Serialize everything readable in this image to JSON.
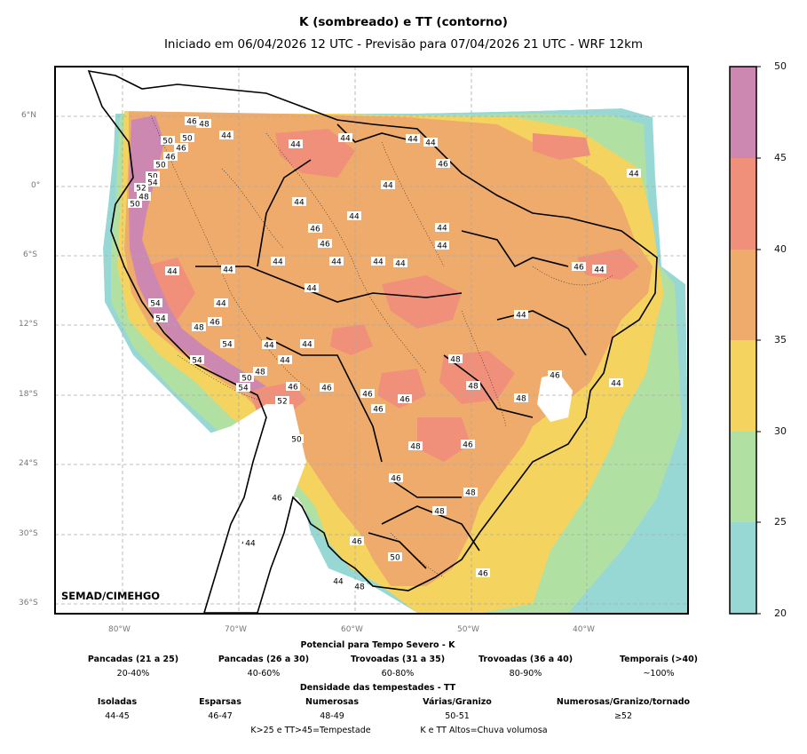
{
  "title": "K (sombreado) e TT (contorno)",
  "subtitle": "Iniciado em 06/04/2026 12 UTC - Previsão para 07/04/2026 21 UTC - WRF 12km",
  "credit": "SEMAD/CIMEHGO",
  "axes": {
    "lat_labels": [
      "6°N",
      "0°",
      "6°S",
      "12°S",
      "18°S",
      "24°S",
      "30°S",
      "36°S"
    ],
    "lon_labels": [
      "80°W",
      "70°W",
      "60°W",
      "50°W",
      "40°W"
    ]
  },
  "colorbar": {
    "ticks": [
      "50",
      "45",
      "40",
      "35",
      "30",
      "25",
      "20"
    ],
    "bands": [
      {
        "from": 45,
        "to": 50,
        "color": "#cc88b0"
      },
      {
        "from": 40,
        "to": 45,
        "color": "#f0907a"
      },
      {
        "from": 35,
        "to": 40,
        "color": "#efab6c"
      },
      {
        "from": 30,
        "to": 35,
        "color": "#f5d35f"
      },
      {
        "from": 25,
        "to": 30,
        "color": "#b1e0a3"
      },
      {
        "from": 20,
        "to": 25,
        "color": "#98d8d4"
      }
    ]
  },
  "tt_contour_labels": [
    "46",
    "48",
    "50",
    "50",
    "46",
    "46",
    "50",
    "50",
    "52",
    "48",
    "50",
    "54",
    "44",
    "54",
    "54",
    "48",
    "46",
    "54",
    "54",
    "50",
    "54",
    "48",
    "52",
    "46",
    "50",
    "46",
    "44",
    "44",
    "44",
    "48",
    "44",
    "44",
    "44",
    "44",
    "46",
    "44",
    "46",
    "46",
    "44",
    "44",
    "44",
    "44",
    "44",
    "44",
    "44",
    "44",
    "44",
    "44",
    "44",
    "44",
    "44",
    "44",
    "46",
    "46",
    "46",
    "46",
    "48",
    "48",
    "48",
    "48",
    "46",
    "48",
    "48",
    "46",
    "46",
    "44",
    "44",
    "46",
    "44",
    "50",
    "46",
    "48",
    "44",
    "46",
    "44"
  ],
  "legend": {
    "k_title": "Potencial para Tempo Severo - K",
    "k_categories": [
      {
        "label": "Pancadas (21 a 25)",
        "value": "20-40%"
      },
      {
        "label": "Pancadas (26 a 30)",
        "value": "40-60%"
      },
      {
        "label": "Trovoadas (31 a 35)",
        "value": "60-80%"
      },
      {
        "label": "Trovoadas (36 a 40)",
        "value": "80-90%"
      },
      {
        "label": "Temporais (>40)",
        "value": "~100%"
      }
    ],
    "tt_title": "Densidade das tempestades - TT",
    "tt_categories": [
      {
        "label": "Isoladas",
        "value": "44-45"
      },
      {
        "label": "Esparsas",
        "value": "46-47"
      },
      {
        "label": "Numerosas",
        "value": "48-49"
      },
      {
        "label": "Várias/Granizo",
        "value": "50-51"
      },
      {
        "label": "Numerosas/Granizo/tornado",
        "value": "≥52"
      }
    ],
    "footer_left": "K>25 e TT>45=Tempestade",
    "footer_right": "K e TT Altos=Chuva volumosa"
  }
}
